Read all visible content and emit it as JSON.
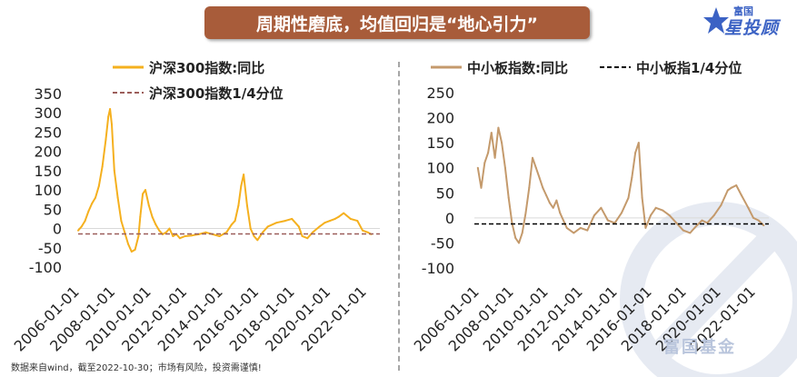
{
  "header": {
    "title": "周期性磨底，均值回归是“地心引力”"
  },
  "brand": {
    "top": "富国",
    "main": "星投顾",
    "star_icon": "star-icon",
    "color": "#3b62c4"
  },
  "watermark": {
    "text": "富国基金"
  },
  "footnote": "数据来自wind，截至2022-10-30；市场有风险，投资需谨慎!",
  "chart_data": [
    {
      "type": "line",
      "title": "",
      "xlabel": "",
      "ylabel": "",
      "ylim": [
        -100,
        350
      ],
      "yticks": [
        350,
        300,
        250,
        200,
        150,
        100,
        50,
        0,
        -50,
        -100
      ],
      "x_tick_labels": [
        "2006-01-01",
        "2008-01-01",
        "2010-01-01",
        "2012-01-01",
        "2014-01-01",
        "2016-01-01",
        "2018-01-01",
        "2020-01-01",
        "2022-01-01"
      ],
      "x_range": [
        2006.0,
        2023.5
      ],
      "legend_position": "top",
      "grid": false,
      "series": [
        {
          "name": "沪深300指数:同比",
          "color": "#f5b01e",
          "style": "solid",
          "x": [
            2006.0,
            2006.2,
            2006.4,
            2006.6,
            2006.8,
            2007.0,
            2007.2,
            2007.4,
            2007.6,
            2007.75,
            2007.85,
            2007.95,
            2008.1,
            2008.3,
            2008.5,
            2008.7,
            2008.9,
            2009.1,
            2009.3,
            2009.5,
            2009.6,
            2009.75,
            2009.9,
            2010.1,
            2010.3,
            2010.5,
            2010.7,
            2010.9,
            2011.1,
            2011.3,
            2011.5,
            2011.7,
            2011.9,
            2012.2,
            2012.6,
            2013.0,
            2013.4,
            2013.8,
            2014.2,
            2014.6,
            2014.9,
            2015.1,
            2015.3,
            2015.45,
            2015.6,
            2015.8,
            2016.0,
            2016.2,
            2016.4,
            2016.7,
            2017.0,
            2017.5,
            2018.0,
            2018.4,
            2018.8,
            2019.0,
            2019.3,
            2019.6,
            2020.0,
            2020.3,
            2020.6,
            2020.9,
            2021.1,
            2021.4,
            2021.8,
            2022.2,
            2022.5,
            2022.8,
            2023.0
          ],
          "values": [
            -5,
            5,
            20,
            45,
            65,
            80,
            110,
            160,
            230,
            290,
            310,
            270,
            150,
            80,
            20,
            -10,
            -40,
            -60,
            -55,
            -20,
            30,
            90,
            100,
            60,
            30,
            10,
            -5,
            -15,
            -10,
            0,
            -20,
            -15,
            -25,
            -20,
            -18,
            -15,
            -10,
            -15,
            -20,
            -10,
            10,
            20,
            60,
            110,
            140,
            60,
            0,
            -20,
            -30,
            -10,
            5,
            15,
            20,
            25,
            5,
            -20,
            -25,
            -10,
            5,
            15,
            20,
            25,
            30,
            40,
            25,
            20,
            -5,
            -10,
            -15
          ]
        },
        {
          "name": "沪深300指数1/4分位",
          "color": "#9c5e5a",
          "style": "dashed",
          "constant": -14
        }
      ]
    },
    {
      "type": "line",
      "title": "",
      "xlabel": "",
      "ylabel": "",
      "ylim": [
        -100,
        250
      ],
      "yticks": [
        250,
        200,
        150,
        100,
        50,
        0,
        -50,
        -100
      ],
      "x_tick_labels": [
        "2006-01-01",
        "2008-01-01",
        "2010-01-01",
        "2012-01-01",
        "2014-01-01",
        "2016-01-01",
        "2018-01-01",
        "2020-01-01",
        "2022-01-01"
      ],
      "x_range": [
        2006.0,
        2023.2
      ],
      "legend_position": "top",
      "grid": false,
      "series": [
        {
          "name": "中小板指数:同比",
          "color": "#c49a6c",
          "style": "solid",
          "x": [
            2006.2,
            2006.4,
            2006.6,
            2006.8,
            2007.0,
            2007.2,
            2007.4,
            2007.6,
            2007.8,
            2008.0,
            2008.2,
            2008.4,
            2008.6,
            2008.8,
            2009.0,
            2009.2,
            2009.4,
            2009.6,
            2009.8,
            2010.0,
            2010.2,
            2010.4,
            2010.6,
            2010.8,
            2011.0,
            2011.4,
            2011.8,
            2012.2,
            2012.6,
            2013.0,
            2013.4,
            2013.8,
            2014.2,
            2014.6,
            2015.0,
            2015.2,
            2015.4,
            2015.6,
            2015.8,
            2016.0,
            2016.3,
            2016.6,
            2017.0,
            2017.4,
            2017.8,
            2018.2,
            2018.6,
            2019.0,
            2019.3,
            2019.6,
            2020.0,
            2020.4,
            2020.8,
            2021.0,
            2021.3,
            2021.6,
            2022.0,
            2022.3,
            2022.6,
            2022.9
          ],
          "values": [
            100,
            60,
            110,
            130,
            170,
            120,
            180,
            150,
            100,
            40,
            -10,
            -40,
            -50,
            -30,
            10,
            60,
            120,
            100,
            80,
            60,
            45,
            30,
            20,
            35,
            10,
            -20,
            -30,
            -20,
            -25,
            5,
            20,
            -5,
            -10,
            10,
            40,
            80,
            130,
            150,
            40,
            -20,
            5,
            20,
            15,
            5,
            -10,
            -25,
            -30,
            -15,
            -5,
            -10,
            5,
            25,
            55,
            60,
            65,
            45,
            20,
            0,
            -5,
            -15
          ]
        },
        {
          "name": "中小板指1/4分位",
          "color": "#000000",
          "style": "dashed",
          "constant": -12
        }
      ]
    }
  ]
}
